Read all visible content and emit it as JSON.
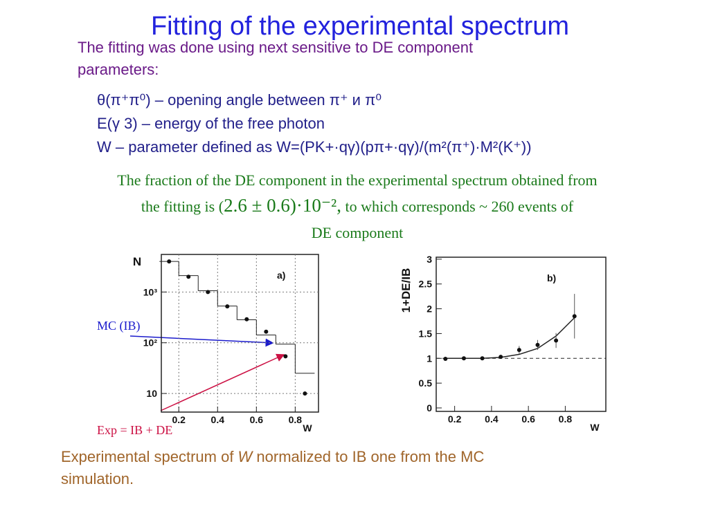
{
  "title": "Fitting of the experimental spectrum",
  "intro": [
    "The fitting was done using next sensitive to DE component",
    "parameters:"
  ],
  "parameters": [
    "θ(π⁺π⁰) – opening angle between π⁺ и π⁰",
    "E(γ 3)   – energy of the free photon",
    "W – parameter defined as W=(PK+·qγ)(pπ+·qγ)/(m²(π⁺)·M²(K⁺))"
  ],
  "fraction": {
    "line1": "The fraction of the DE component in the experimental spectrum obtained from",
    "line2": [
      "the fitting is (",
      "2.6 ± 0.6)·10⁻²,",
      " to which corresponds ~ 260 events of"
    ],
    "line3": "DE component"
  },
  "caption": {
    "line1": [
      "Experimental spectrum of ",
      "W",
      " normalized to IB one from the MC"
    ],
    "line2": "simulation."
  },
  "plots": [
    {
      "type": "histogram",
      "panel": "a)",
      "ylabel": "N",
      "xlabel": "W",
      "log_y": true,
      "xlim": [
        0.11,
        0.92
      ],
      "ylim": [
        4.3,
        5500
      ],
      "xticks": [
        0.2,
        0.4,
        0.6,
        0.8
      ],
      "yticks": [
        10,
        {
          "value": 100,
          "label": "10²"
        },
        {
          "value": 1000,
          "label": "10³"
        }
      ],
      "grid": true,
      "bins": [
        0.1,
        0.2,
        0.3,
        0.4,
        0.5,
        0.6,
        0.7,
        0.8,
        0.9
      ],
      "counts": [
        4000,
        2100,
        1060,
        530,
        283,
        142,
        94,
        25
      ],
      "points": {
        "x": [
          0.15,
          0.25,
          0.35,
          0.45,
          0.55,
          0.65,
          0.75,
          0.85
        ],
        "values": [
          4000,
          2000,
          1000,
          520,
          290,
          165,
          54,
          10
        ]
      },
      "annotations": [
        "MC (IB)",
        "Exp = IB + DE"
      ]
    },
    {
      "type": "scatter",
      "panel": "b)",
      "ylabel": "1+DE/IB",
      "xlabel": "W",
      "xlim": [
        0.1,
        1.02
      ],
      "ylim": [
        -0.07,
        3.04
      ],
      "xticks": [
        0.2,
        0.4,
        0.6,
        0.8
      ],
      "yticks": [
        0,
        0.5,
        1,
        1.5,
        2,
        2.5,
        3
      ],
      "points": {
        "x": [
          0.15,
          0.25,
          0.35,
          0.45,
          0.55,
          0.65,
          0.75,
          0.85
        ],
        "values": [
          0.99,
          1.0,
          1.0,
          1.03,
          1.17,
          1.27,
          1.36,
          1.85
        ],
        "errors": [
          0.02,
          0.02,
          0.02,
          0.03,
          0.08,
          0.1,
          0.15,
          0.45
        ]
      },
      "fit": {
        "x": [
          0.15,
          0.25,
          0.35,
          0.45,
          0.55,
          0.65,
          0.75,
          0.85
        ],
        "values": [
          1.0,
          1.0,
          1.0,
          1.02,
          1.08,
          1.2,
          1.45,
          1.82
        ]
      },
      "reference_line": 1
    }
  ]
}
